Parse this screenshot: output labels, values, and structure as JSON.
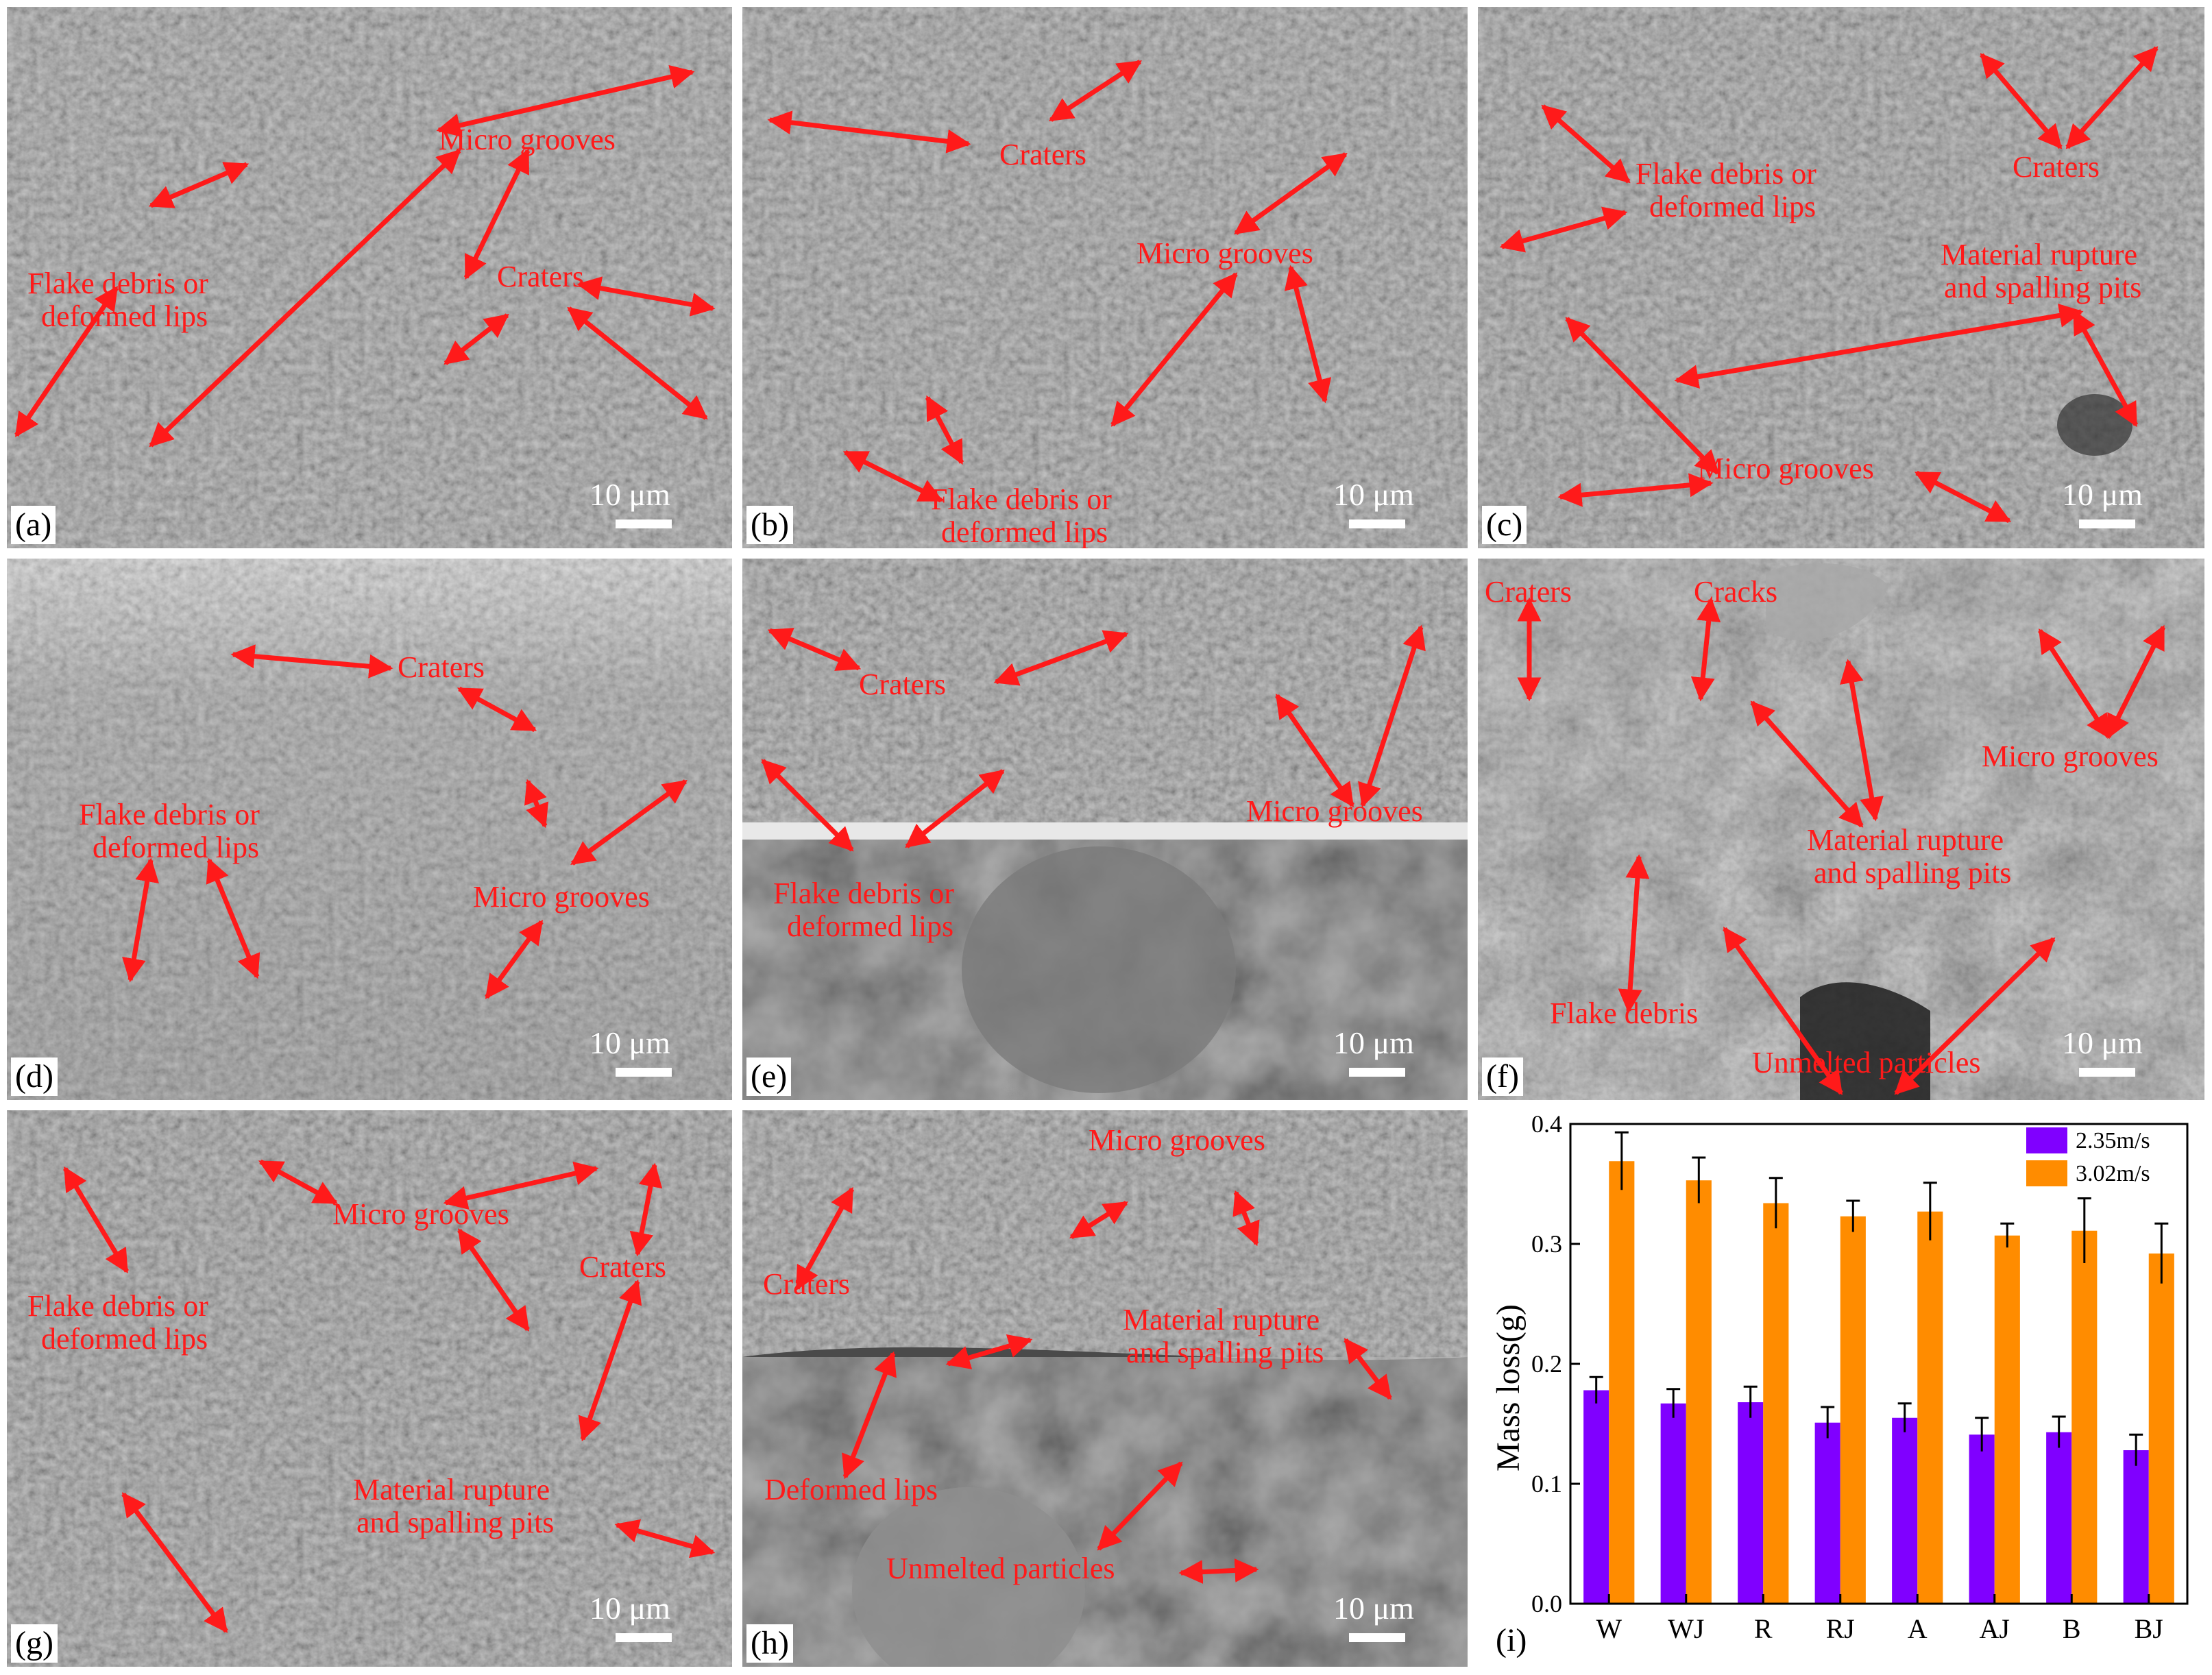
{
  "colors": {
    "annotation": "#ff1a1a",
    "series1": "#8000ff",
    "series2": "#ff8c00"
  },
  "panels": {
    "a": {
      "letter": "(a)",
      "scale": "10 μm",
      "labels": {
        "micro_grooves": "Micro grooves",
        "craters": "Craters",
        "flake_1": "Flake debris or",
        "flake_2": "deformed lips"
      }
    },
    "b": {
      "letter": "(b)",
      "scale": "10 μm",
      "labels": {
        "craters": "Craters",
        "micro_grooves": "Micro grooves",
        "flake_1": "Flake debris or",
        "flake_2": "deformed lips"
      }
    },
    "c": {
      "letter": "(c)",
      "scale": "10 μm",
      "labels": {
        "flake_1": "Flake debris or",
        "flake_2": "deformed lips",
        "craters": "Craters",
        "rupture_1": "Material rupture",
        "rupture_2": "and spalling pits",
        "micro_grooves": "Micro grooves"
      }
    },
    "d": {
      "letter": "(d)",
      "scale": "10 μm",
      "labels": {
        "craters": "Craters",
        "flake_1": "Flake debris or",
        "flake_2": "deformed lips",
        "micro_grooves": "Micro grooves"
      }
    },
    "e": {
      "letter": "(e)",
      "scale": "10 μm",
      "labels": {
        "craters": "Craters",
        "micro_grooves": "Micro grooves",
        "flake_1": "Flake debris or",
        "flake_2": "deformed lips"
      }
    },
    "f": {
      "letter": "(f)",
      "scale": "10 μm",
      "labels": {
        "craters": "Craters",
        "cracks": "Cracks",
        "micro_grooves": "Micro grooves",
        "rupture_1": "Material rupture",
        "rupture_2": "and spalling pits",
        "flake": "Flake debris",
        "unmelted": "Unmelted particles"
      }
    },
    "g": {
      "letter": "(g)",
      "scale": "10 μm",
      "labels": {
        "micro_grooves": "Micro grooves",
        "craters": "Craters",
        "flake_1": "Flake debris or",
        "flake_2": "deformed lips",
        "rupture_1": "Material rupture",
        "rupture_2": "and spalling pits"
      }
    },
    "h": {
      "letter": "(h)",
      "scale": "10 μm",
      "labels": {
        "micro_grooves": "Micro grooves",
        "craters": "Craters",
        "rupture_1": "Material rupture",
        "rupture_2": "and spalling pits",
        "deformed": "Deformed lips",
        "unmelted": "Unmelted particles"
      }
    },
    "i": {
      "letter": "(i)"
    }
  },
  "chart_data": {
    "type": "bar",
    "title": "",
    "xlabel": "",
    "ylabel": "Mass loss(g)",
    "ylim": [
      0.0,
      0.4
    ],
    "yticks": [
      "0.0",
      "0.1",
      "0.2",
      "0.3",
      "0.4"
    ],
    "categories": [
      "W",
      "WJ",
      "R",
      "RJ",
      "A",
      "AJ",
      "B",
      "BJ"
    ],
    "legend_position": "top-right",
    "series": [
      {
        "name": "2.35m/s",
        "color": "#8000ff",
        "values": [
          0.178,
          0.167,
          0.168,
          0.151,
          0.155,
          0.141,
          0.143,
          0.128
        ],
        "errors": [
          0.011,
          0.012,
          0.013,
          0.013,
          0.012,
          0.014,
          0.013,
          0.013
        ]
      },
      {
        "name": "3.02m/s",
        "color": "#ff8c00",
        "values": [
          0.369,
          0.353,
          0.334,
          0.323,
          0.327,
          0.307,
          0.311,
          0.292
        ],
        "errors": [
          0.024,
          0.019,
          0.021,
          0.013,
          0.024,
          0.01,
          0.027,
          0.025
        ]
      }
    ]
  }
}
